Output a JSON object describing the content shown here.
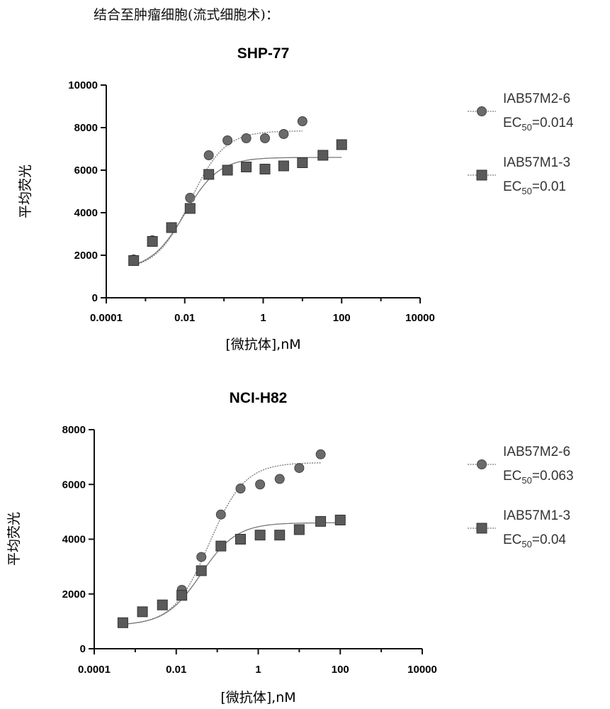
{
  "heading": "结合至肿瘤细胞(流式细胞术)：",
  "chart_data": [
    {
      "type": "scatter",
      "title": "SHP-77",
      "xlabel": "[微抗体],nM",
      "ylabel": "平均荧光",
      "xscale": "log",
      "xlim": [
        0.0001,
        10000
      ],
      "ylim": [
        0,
        10000
      ],
      "xticks": [
        0.0001,
        0.01,
        1,
        100,
        10000
      ],
      "xtick_labels": [
        "0.0001",
        "0.01",
        "1",
        "100",
        "10000"
      ],
      "yticks": [
        0,
        2000,
        4000,
        6000,
        8000,
        10000
      ],
      "ytick_labels": [
        "0",
        "2000",
        "4000",
        "6000",
        "8000",
        "10000"
      ],
      "grid": false,
      "legend_position": "right",
      "series": [
        {
          "name": "IAB57M2-6",
          "ec50_label": "EC",
          "ec50_sub": "50",
          "ec50_value": "=0.014",
          "marker": "circle",
          "color": "#6b6b6b",
          "x": [
            0.0005,
            0.0015,
            0.0046,
            0.0137,
            0.041,
            0.123,
            0.37,
            1.11,
            3.33,
            10
          ],
          "y": [
            1800,
            2700,
            3300,
            4700,
            6700,
            7400,
            7500,
            7500,
            7700,
            8300
          ],
          "fit": {
            "bottom": 1300,
            "top": 7850,
            "ec50": 0.014,
            "hill": 1.0
          }
        },
        {
          "name": "IAB57M1-3",
          "ec50_label": "EC",
          "ec50_sub": "50",
          "ec50_value": "=0.01",
          "marker": "square",
          "color": "#5a5a5a",
          "x": [
            0.0005,
            0.0015,
            0.0046,
            0.0137,
            0.041,
            0.123,
            0.37,
            1.11,
            3.33,
            10,
            33.3,
            100
          ],
          "y": [
            1750,
            2650,
            3300,
            4200,
            5800,
            6000,
            6150,
            6050,
            6200,
            6350,
            6700,
            7200
          ],
          "fit": {
            "bottom": 1300,
            "top": 6600,
            "ec50": 0.01,
            "hill": 1.0
          }
        }
      ]
    },
    {
      "type": "scatter",
      "title": "NCI-H82",
      "xlabel": "[微抗体],nM",
      "ylabel": "平均荧光",
      "xscale": "log",
      "xlim": [
        0.0001,
        10000
      ],
      "ylim": [
        0,
        8000
      ],
      "xticks": [
        0.0001,
        0.01,
        1,
        100,
        10000
      ],
      "xtick_labels": [
        "0.0001",
        "0.01",
        "1",
        "100",
        "10000"
      ],
      "yticks": [
        0,
        2000,
        4000,
        6000,
        8000
      ],
      "ytick_labels": [
        "0",
        "2000",
        "4000",
        "6000",
        "8000"
      ],
      "grid": false,
      "legend_position": "right",
      "series": [
        {
          "name": "IAB57M2-6",
          "ec50_label": "EC",
          "ec50_sub": "50",
          "ec50_value": "=0.063",
          "marker": "circle",
          "color": "#6b6b6b",
          "x": [
            0.0005,
            0.0015,
            0.0046,
            0.0137,
            0.041,
            0.123,
            0.37,
            1.11,
            3.33,
            10,
            33.3
          ],
          "y": [
            950,
            1350,
            1600,
            2150,
            3350,
            4900,
            5850,
            6000,
            6200,
            6600,
            7100
          ],
          "fit": {
            "bottom": 850,
            "top": 6800,
            "ec50": 0.063,
            "hill": 1.0
          }
        },
        {
          "name": "IAB57M1-3",
          "ec50_label": "EC",
          "ec50_sub": "50",
          "ec50_value": "=0.04",
          "marker": "square",
          "color": "#5a5a5a",
          "x": [
            0.0005,
            0.0015,
            0.0046,
            0.0137,
            0.041,
            0.123,
            0.37,
            1.11,
            3.33,
            10,
            33.3,
            100
          ],
          "y": [
            950,
            1350,
            1600,
            1950,
            2850,
            3750,
            4000,
            4150,
            4150,
            4350,
            4650,
            4700
          ],
          "fit": {
            "bottom": 850,
            "top": 4600,
            "ec50": 0.04,
            "hill": 1.0
          }
        }
      ]
    }
  ]
}
